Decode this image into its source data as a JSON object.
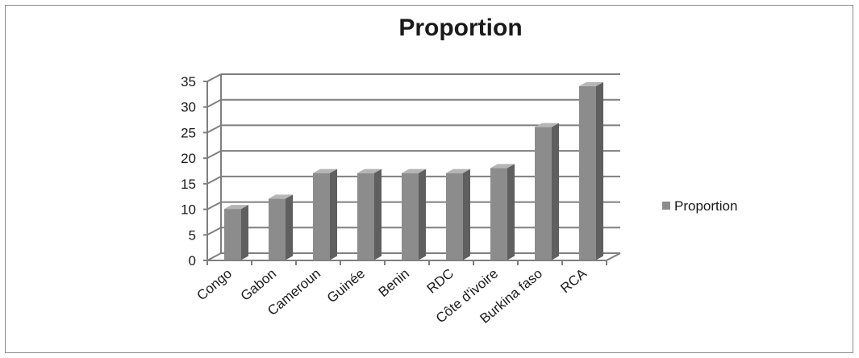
{
  "chart_data": {
    "type": "bar",
    "title": "Proportion",
    "categories": [
      "Congo",
      "Gabon",
      "Cameroun",
      "Guinée",
      "Benin",
      "RDC",
      "Côte d'ivoire",
      "Burkina faso",
      "RCA"
    ],
    "series": [
      {
        "name": "Proportion",
        "values": [
          10,
          12,
          17,
          17,
          17,
          17,
          18,
          26,
          34
        ]
      }
    ],
    "ylim": [
      0,
      35
    ],
    "yticks": [
      0,
      5,
      10,
      15,
      20,
      25,
      30,
      35
    ],
    "grid": true,
    "legend": "right",
    "style": "3d-column",
    "colors": {
      "bar_front": "#8c8c8c",
      "bar_side": "#5f5f5f",
      "bar_top": "#b5b5b5",
      "grid": "#7f7f7f"
    }
  }
}
